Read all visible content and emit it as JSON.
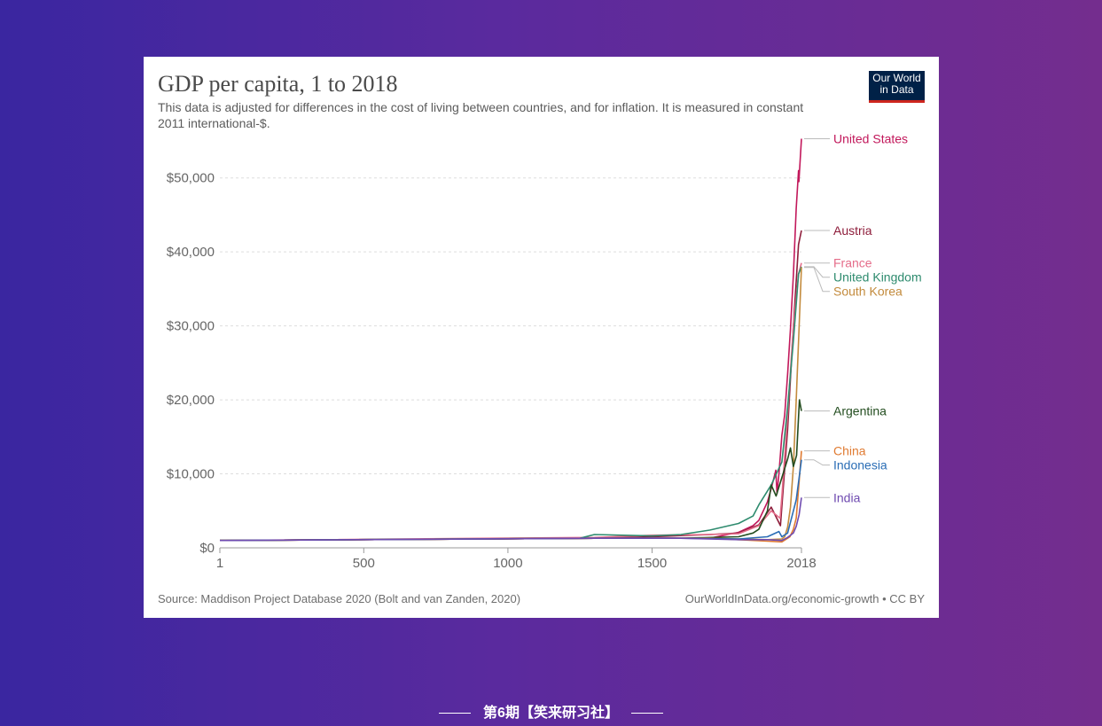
{
  "title": "GDP per capita, 1 to 2018",
  "subtitle": "This data is adjusted for differences in the cost of living between countries, and for inflation. It is measured in constant 2011 international-$.",
  "logo": {
    "line1": "Our World",
    "line2": "in Data"
  },
  "source": "Source: Maddison Project Database 2020 (Bolt and van Zanden, 2020)",
  "credit": "OurWorldInData.org/economic-growth • CC BY",
  "footer": "第6期【笑来研习社】",
  "chart_data": {
    "type": "line",
    "title": "GDP per capita, 1 to 2018",
    "x_ticks": [
      1,
      500,
      1000,
      1500,
      2018
    ],
    "y_ticks": [
      0,
      10000,
      20000,
      30000,
      40000,
      50000
    ],
    "y_tick_labels": [
      "$0",
      "$10,000",
      "$20,000",
      "$30,000",
      "$40,000",
      "$50,000"
    ],
    "xlim": [
      1,
      2018
    ],
    "ylim": [
      0,
      55000
    ],
    "grid": "horizontal dashed",
    "legend": "right, labels at line ends",
    "series": [
      {
        "name": "United States",
        "color": "#c2185b",
        "x": [
          1,
          1300,
          1500,
          1700,
          1800,
          1850,
          1870,
          1900,
          1913,
          1929,
          1933,
          1940,
          1950,
          1960,
          1970,
          1980,
          1990,
          2000,
          2008,
          2009,
          2018
        ],
        "y": [
          1000,
          1300,
          1300,
          1300,
          2100,
          3000,
          3700,
          6200,
          8000,
          10500,
          7300,
          10000,
          15200,
          18000,
          23500,
          29600,
          36900,
          45900,
          51000,
          49500,
          55300
        ]
      },
      {
        "name": "Austria",
        "color": "#8e1d3b",
        "x": [
          1,
          1300,
          1500,
          1700,
          1800,
          1870,
          1913,
          1945,
          1950,
          1970,
          1990,
          2008,
          2018
        ],
        "y": [
          1000,
          1300,
          1500,
          1800,
          2000,
          3100,
          5500,
          3000,
          5600,
          16000,
          30000,
          41000,
          42900
        ]
      },
      {
        "name": "France",
        "color": "#e56d8a",
        "x": [
          1,
          1300,
          1500,
          1700,
          1800,
          1870,
          1913,
          1944,
          1950,
          1970,
          1990,
          2008,
          2018
        ],
        "y": [
          1000,
          1400,
          1700,
          1800,
          1900,
          3000,
          5000,
          4000,
          7000,
          18000,
          30000,
          37000,
          38500
        ]
      },
      {
        "name": "United Kingdom",
        "color": "#2e8b6e",
        "x": [
          1,
          1250,
          1300,
          1500,
          1600,
          1700,
          1800,
          1850,
          1870,
          1913,
          1950,
          1970,
          1990,
          2008,
          2018
        ],
        "y": [
          1000,
          1300,
          1800,
          1600,
          1800,
          2400,
          3300,
          4300,
          5800,
          8500,
          11600,
          19000,
          28000,
          37000,
          38000
        ]
      },
      {
        "name": "South Korea",
        "color": "#c38b3d",
        "x": [
          1,
          1300,
          1500,
          1700,
          1800,
          1900,
          1950,
          1960,
          1970,
          1980,
          1990,
          2000,
          2010,
          2018
        ],
        "y": [
          1000,
          1300,
          1300,
          1300,
          1200,
          1100,
          1200,
          1500,
          2800,
          5500,
          11000,
          20000,
          30000,
          37900
        ]
      },
      {
        "name": "Argentina",
        "color": "#234d1f",
        "x": [
          1,
          1300,
          1600,
          1800,
          1850,
          1870,
          1900,
          1913,
          1930,
          1950,
          1970,
          1980,
          1990,
          2001,
          2011,
          2018
        ],
        "y": [
          1000,
          1300,
          1300,
          1500,
          2000,
          2500,
          5000,
          8500,
          7000,
          9500,
          12000,
          13500,
          11000,
          12500,
          20000,
          18500
        ]
      },
      {
        "name": "China",
        "color": "#e07b32",
        "x": [
          1,
          1300,
          1500,
          1700,
          1800,
          1900,
          1950,
          1978,
          1990,
          2000,
          2010,
          2018
        ],
        "y": [
          1000,
          1300,
          1300,
          1300,
          1100,
          900,
          800,
          1500,
          2500,
          4000,
          9000,
          13100
        ]
      },
      {
        "name": "Indonesia",
        "color": "#2a6db5",
        "x": [
          1,
          1300,
          1600,
          1800,
          1900,
          1940,
          1950,
          1970,
          1990,
          2000,
          2010,
          2018
        ],
        "y": [
          1000,
          1300,
          1300,
          1200,
          1500,
          2200,
          1500,
          2000,
          5000,
          6500,
          9500,
          11900
        ]
      },
      {
        "name": "India",
        "color": "#6f4bb0",
        "x": [
          1,
          1300,
          1600,
          1800,
          1900,
          1950,
          1970,
          1990,
          2000,
          2010,
          2018
        ],
        "y": [
          1000,
          1300,
          1300,
          1100,
          1100,
          1000,
          1400,
          2000,
          2900,
          4500,
          6800
        ]
      }
    ]
  }
}
